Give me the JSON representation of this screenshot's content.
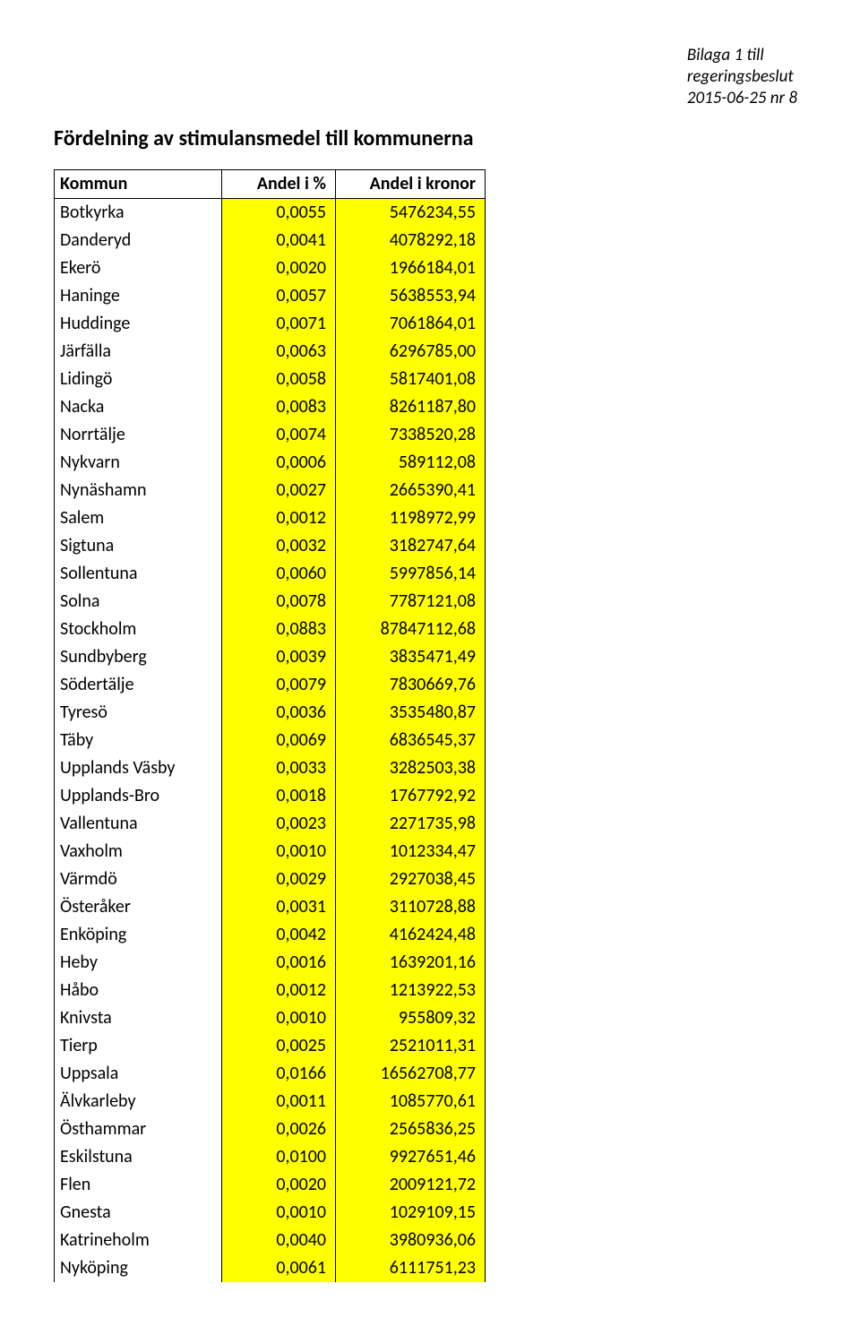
{
  "header": {
    "line1": "Bilaga 1 till",
    "line2": "regeringsbeslut",
    "line3": "2015-06-25 nr 8"
  },
  "title": "Fördelning av stimulansmedel till kommunerna",
  "table": {
    "columns": [
      "Kommun",
      "Andel i %",
      "Andel i kronor"
    ],
    "highlight_color": "#ffff00",
    "rows": [
      [
        "Botkyrka",
        "0,0055",
        "5476234,55"
      ],
      [
        "Danderyd",
        "0,0041",
        "4078292,18"
      ],
      [
        "Ekerö",
        "0,0020",
        "1966184,01"
      ],
      [
        "Haninge",
        "0,0057",
        "5638553,94"
      ],
      [
        "Huddinge",
        "0,0071",
        "7061864,01"
      ],
      [
        "Järfälla",
        "0,0063",
        "6296785,00"
      ],
      [
        "Lidingö",
        "0,0058",
        "5817401,08"
      ],
      [
        "Nacka",
        "0,0083",
        "8261187,80"
      ],
      [
        "Norrtälje",
        "0,0074",
        "7338520,28"
      ],
      [
        "Nykvarn",
        "0,0006",
        "589112,08"
      ],
      [
        "Nynäshamn",
        "0,0027",
        "2665390,41"
      ],
      [
        "Salem",
        "0,0012",
        "1198972,99"
      ],
      [
        "Sigtuna",
        "0,0032",
        "3182747,64"
      ],
      [
        "Sollentuna",
        "0,0060",
        "5997856,14"
      ],
      [
        "Solna",
        "0,0078",
        "7787121,08"
      ],
      [
        "Stockholm",
        "0,0883",
        "87847112,68"
      ],
      [
        "Sundbyberg",
        "0,0039",
        "3835471,49"
      ],
      [
        "Södertälje",
        "0,0079",
        "7830669,76"
      ],
      [
        "Tyresö",
        "0,0036",
        "3535480,87"
      ],
      [
        "Täby",
        "0,0069",
        "6836545,37"
      ],
      [
        "Upplands Väsby",
        "0,0033",
        "3282503,38"
      ],
      [
        "Upplands-Bro",
        "0,0018",
        "1767792,92"
      ],
      [
        "Vallentuna",
        "0,0023",
        "2271735,98"
      ],
      [
        "Vaxholm",
        "0,0010",
        "1012334,47"
      ],
      [
        "Värmdö",
        "0,0029",
        "2927038,45"
      ],
      [
        "Österåker",
        "0,0031",
        "3110728,88"
      ],
      [
        "Enköping",
        "0,0042",
        "4162424,48"
      ],
      [
        "Heby",
        "0,0016",
        "1639201,16"
      ],
      [
        "Håbo",
        "0,0012",
        "1213922,53"
      ],
      [
        "Knivsta",
        "0,0010",
        "955809,32"
      ],
      [
        "Tierp",
        "0,0025",
        "2521011,31"
      ],
      [
        "Uppsala",
        "0,0166",
        "16562708,77"
      ],
      [
        "Älvkarleby",
        "0,0011",
        "1085770,61"
      ],
      [
        "Östhammar",
        "0,0026",
        "2565836,25"
      ],
      [
        "Eskilstuna",
        "0,0100",
        "9927651,46"
      ],
      [
        "Flen",
        "0,0020",
        "2009121,72"
      ],
      [
        "Gnesta",
        "0,0010",
        "1029109,15"
      ],
      [
        "Katrineholm",
        "0,0040",
        "3980936,06"
      ],
      [
        "Nyköping",
        "0,0061",
        "6111751,23"
      ]
    ]
  }
}
